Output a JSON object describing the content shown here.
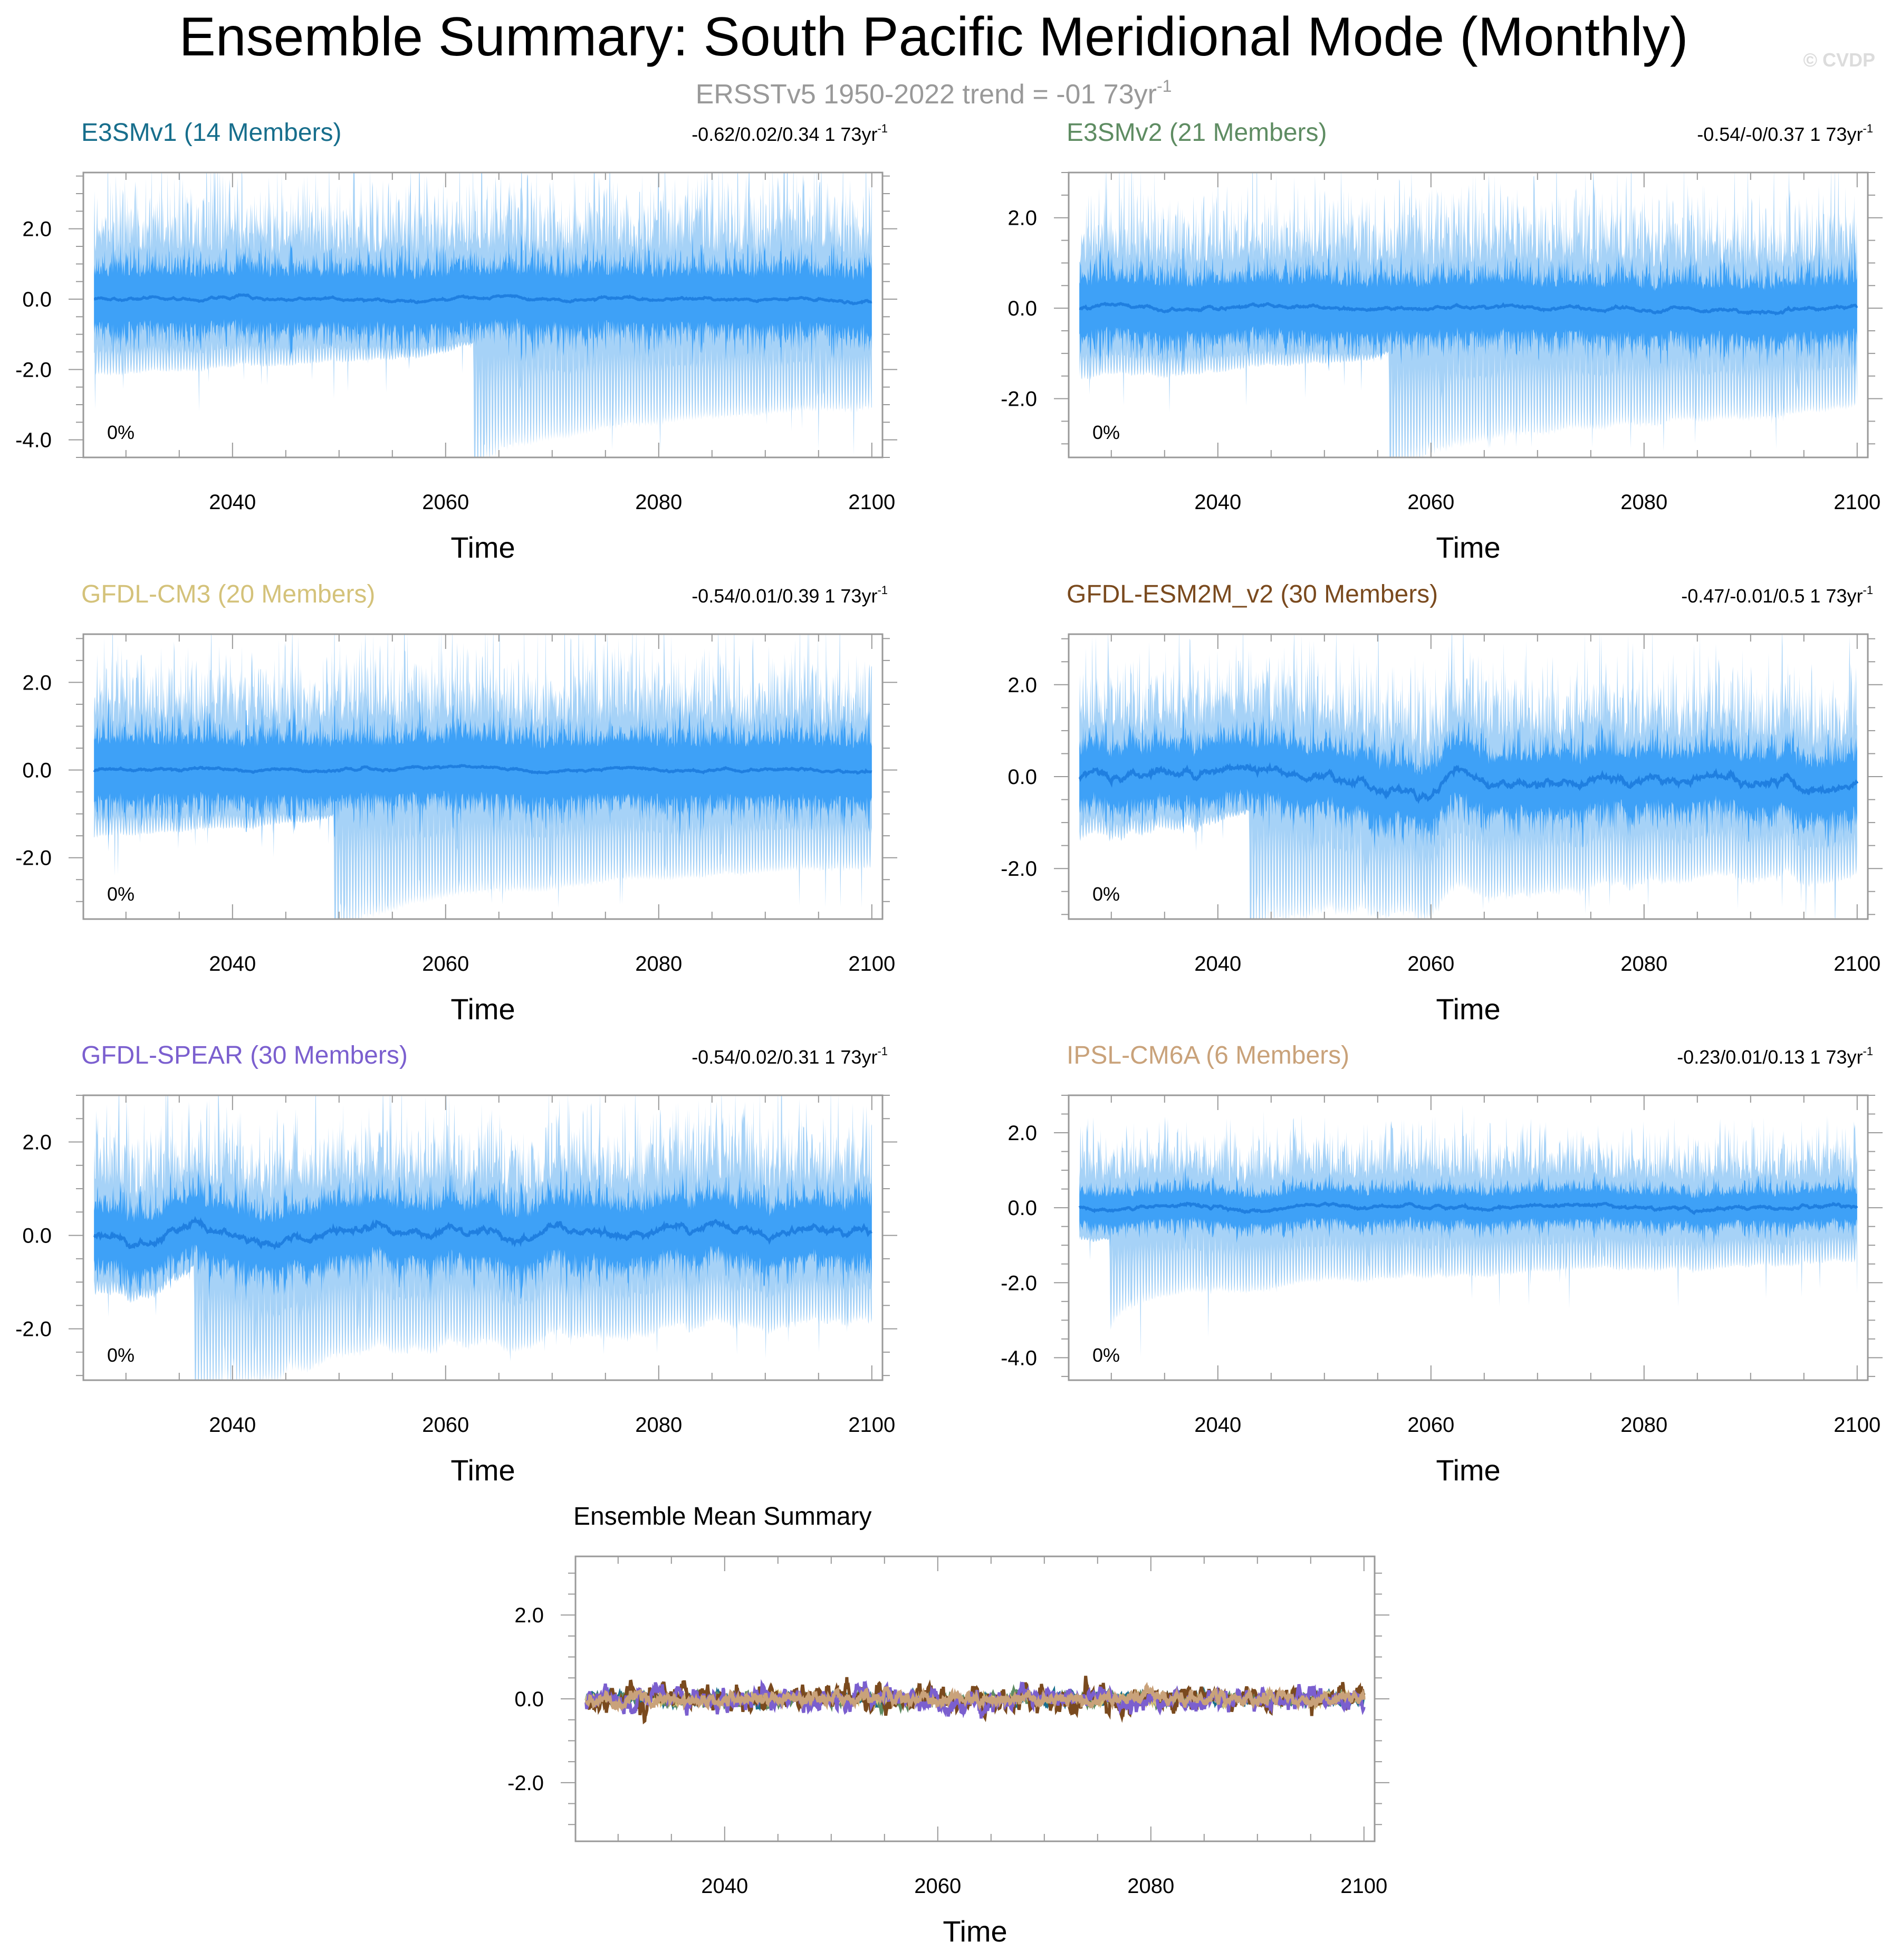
{
  "page": {
    "title": "Ensemble Summary: South Pacific Meridional Mode (Monthly)",
    "subtitle_main": "ERSSTv5 1950-2022 trend = -01 73yr",
    "subtitle_sup": "-1",
    "copyright": "© CVDP"
  },
  "colors": {
    "envelope_outer": "#a6d2f7",
    "envelope_inner": "#3ea1f7",
    "mean_line": "#1f7fe0",
    "axis": "#999999",
    "title_text": "#000000",
    "subtitle_text": "#999999",
    "copyright_text": "#dcdcdc"
  },
  "chart_data": [
    {
      "type": "area",
      "id": "e3smv1",
      "title": "E3SMv1 (14 Members)",
      "title_color": "#176e8c",
      "trend_main": "-0.62/0.02/0.34 1 73yr",
      "trend_sup": "-1",
      "percent_label": "0%",
      "xlabel": "Time",
      "xlim": [
        2026,
        2101
      ],
      "ylim": [
        -4.5,
        3.6
      ],
      "xticks": [
        2040,
        2060,
        2080,
        2100
      ],
      "yticks": [
        2.0,
        0.0,
        -2.0,
        -4.0
      ],
      "ytick_labels": [
        "2.0",
        "0.0",
        "-2.0",
        "-4.0"
      ],
      "inner_amp": 1.05,
      "outer_amp": 2.3,
      "mean_amp": 0.05,
      "min_value": -4.3,
      "max_value": 3.4
    },
    {
      "type": "area",
      "id": "e3smv2",
      "title": "E3SMv2 (21 Members)",
      "title_color": "#5e8c62",
      "trend_main": "-0.54/-0/0.37 1 73yr",
      "trend_sup": "-1",
      "percent_label": "0%",
      "xlabel": "Time",
      "xlim": [
        2026,
        2101
      ],
      "ylim": [
        -3.3,
        3.0
      ],
      "xticks": [
        2040,
        2060,
        2080,
        2100
      ],
      "yticks": [
        2.0,
        0.0,
        -2.0
      ],
      "ytick_labels": [
        "2.0",
        "0.0",
        "-2.0"
      ],
      "inner_amp": 0.8,
      "outer_amp": 1.75,
      "mean_amp": 0.05,
      "min_value": -3.1,
      "max_value": 2.5
    },
    {
      "type": "area",
      "id": "gfdl-cm3",
      "title": "GFDL-CM3 (20 Members)",
      "title_color": "#d4c27a",
      "trend_main": "-0.54/0.01/0.39 1 73yr",
      "trend_sup": "-1",
      "percent_label": "0%",
      "xlabel": "Time",
      "xlim": [
        2026,
        2101
      ],
      "ylim": [
        -3.4,
        3.1
      ],
      "xticks": [
        2040,
        2060,
        2080,
        2100
      ],
      "yticks": [
        2.0,
        0.0,
        -2.0
      ],
      "ytick_labels": [
        "2.0",
        "0.0",
        "-2.0"
      ],
      "inner_amp": 0.9,
      "outer_amp": 1.8,
      "mean_amp": 0.04,
      "min_value": -3.1,
      "max_value": 2.3
    },
    {
      "type": "area",
      "id": "gfdl-esm2m-v2",
      "title": "GFDL-ESM2M_v2 (30 Members)",
      "title_color": "#7a4a1e",
      "trend_main": "-0.47/-0.01/0.5 1 73yr",
      "trend_sup": "-1",
      "percent_label": "0%",
      "xlabel": "Time",
      "xlim": [
        2026,
        2101
      ],
      "ylim": [
        -3.1,
        3.1
      ],
      "xticks": [
        2040,
        2060,
        2080,
        2100
      ],
      "yticks": [
        2.0,
        0.0,
        -2.0
      ],
      "ytick_labels": [
        "2.0",
        "0.0",
        "-2.0"
      ],
      "inner_amp": 0.8,
      "outer_amp": 1.7,
      "mean_amp": 0.13,
      "min_value": -2.8,
      "max_value": 2.7
    },
    {
      "type": "area",
      "id": "gfdl-spear",
      "title": "GFDL-SPEAR (30 Members)",
      "title_color": "#7b5fcf",
      "trend_main": "-0.54/0.02/0.31 1 73yr",
      "trend_sup": "-1",
      "percent_label": "0%",
      "xlabel": "Time",
      "xlim": [
        2026,
        2101
      ],
      "ylim": [
        -3.1,
        3.0
      ],
      "xticks": [
        2040,
        2060,
        2080,
        2100
      ],
      "yticks": [
        2.0,
        0.0,
        -2.0
      ],
      "ytick_labels": [
        "2.0",
        "0.0",
        "-2.0"
      ],
      "inner_amp": 0.8,
      "outer_amp": 1.7,
      "mean_amp": 0.12,
      "min_value": -2.6,
      "max_value": 2.7
    },
    {
      "type": "area",
      "id": "ipsl-cm6a",
      "title": "IPSL-CM6A (6 Members)",
      "title_color": "#c9a27a",
      "trend_main": "-0.23/0.01/0.13 1 73yr",
      "trend_sup": "-1",
      "percent_label": "0%",
      "xlabel": "Time",
      "xlim": [
        2026,
        2101
      ],
      "ylim": [
        -4.6,
        3.0
      ],
      "xticks": [
        2040,
        2060,
        2080,
        2100
      ],
      "yticks": [
        2.0,
        0.0,
        -2.0,
        -4.0
      ],
      "ytick_labels": [
        "2.0",
        "0.0",
        "-2.0",
        "-4.0"
      ],
      "inner_amp": 0.55,
      "outer_amp": 1.35,
      "mean_amp": 0.06,
      "min_value": -4.4,
      "max_value": 2.4
    },
    {
      "type": "line",
      "id": "ensemble-mean",
      "title": "Ensemble Mean Summary",
      "title_color": "#000000",
      "xlabel": "Time",
      "xlim": [
        2026,
        2101
      ],
      "ylim": [
        -3.4,
        3.4
      ],
      "xticks": [
        2040,
        2060,
        2080,
        2100
      ],
      "yticks": [
        2.0,
        0.0,
        -2.0
      ],
      "ytick_labels": [
        "2.0",
        "0.0",
        "-2.0"
      ],
      "series": [
        {
          "color": "#176e8c",
          "amp": 0.07
        },
        {
          "color": "#5e8c62",
          "amp": 0.07
        },
        {
          "color": "#d4c27a",
          "amp": 0.06
        },
        {
          "color": "#7a4a1e",
          "amp": 0.16
        },
        {
          "color": "#7b5fcf",
          "amp": 0.14
        },
        {
          "color": "#c9a27a",
          "amp": 0.08
        }
      ]
    }
  ]
}
